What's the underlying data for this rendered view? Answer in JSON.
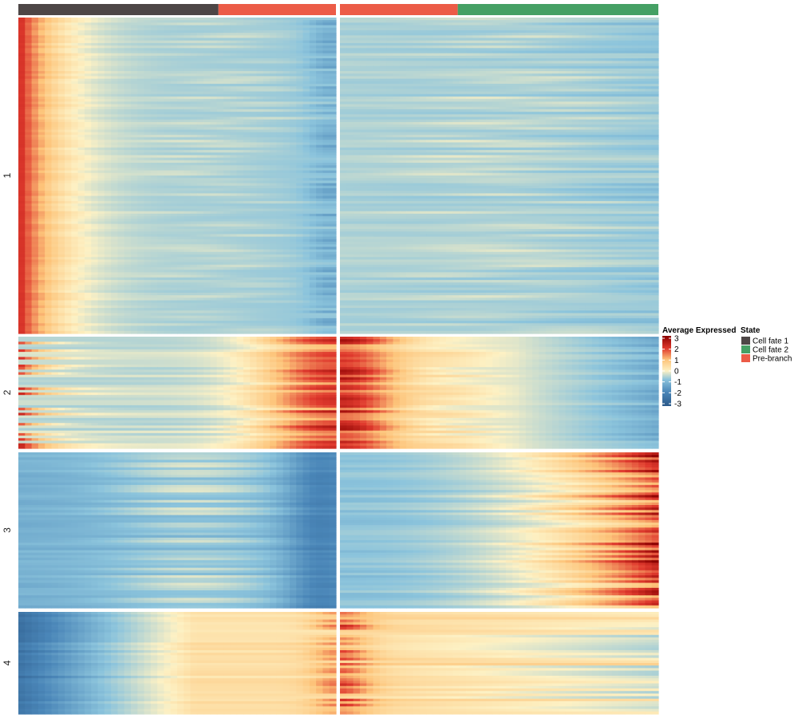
{
  "chart_data": {
    "type": "heatmap",
    "title": "",
    "row_clusters": [
      {
        "label": "1",
        "rows": 124,
        "pattern": "high-early"
      },
      {
        "label": "2",
        "rows": 44,
        "pattern": "high-at-branch"
      },
      {
        "label": "3",
        "rows": 62,
        "pattern": "high-late-fate2"
      },
      {
        "label": "4",
        "rows": 40,
        "pattern": "low-early-high-branch"
      }
    ],
    "column_panels": [
      {
        "name": "left",
        "segments": [
          {
            "state": "Cell fate 1",
            "fraction": 0.63
          },
          {
            "state": "Pre-branch",
            "fraction": 0.37
          }
        ]
      },
      {
        "name": "right",
        "segments": [
          {
            "state": "Pre-branch",
            "fraction": 0.37
          },
          {
            "state": "Cell fate 2",
            "fraction": 0.63
          }
        ]
      }
    ],
    "color_scale": {
      "title": "Average Expressed",
      "ticks": [
        "3",
        "2",
        "1",
        "0",
        "-1",
        "-2",
        "-3"
      ],
      "min": -3,
      "max": 3,
      "colors": [
        "#2c5a8a",
        "#4a86b8",
        "#8cc4dc",
        "#fdf1c4",
        "#fdc47a",
        "#e03a2e",
        "#8b0000"
      ]
    },
    "state_legend": {
      "title": "State",
      "items": [
        {
          "label": "Cell fate 1",
          "color": "#4d4646"
        },
        {
          "label": "Cell fate 2",
          "color": "#45a064"
        },
        {
          "label": "Pre-branch",
          "color": "#ec5b47"
        }
      ]
    }
  }
}
